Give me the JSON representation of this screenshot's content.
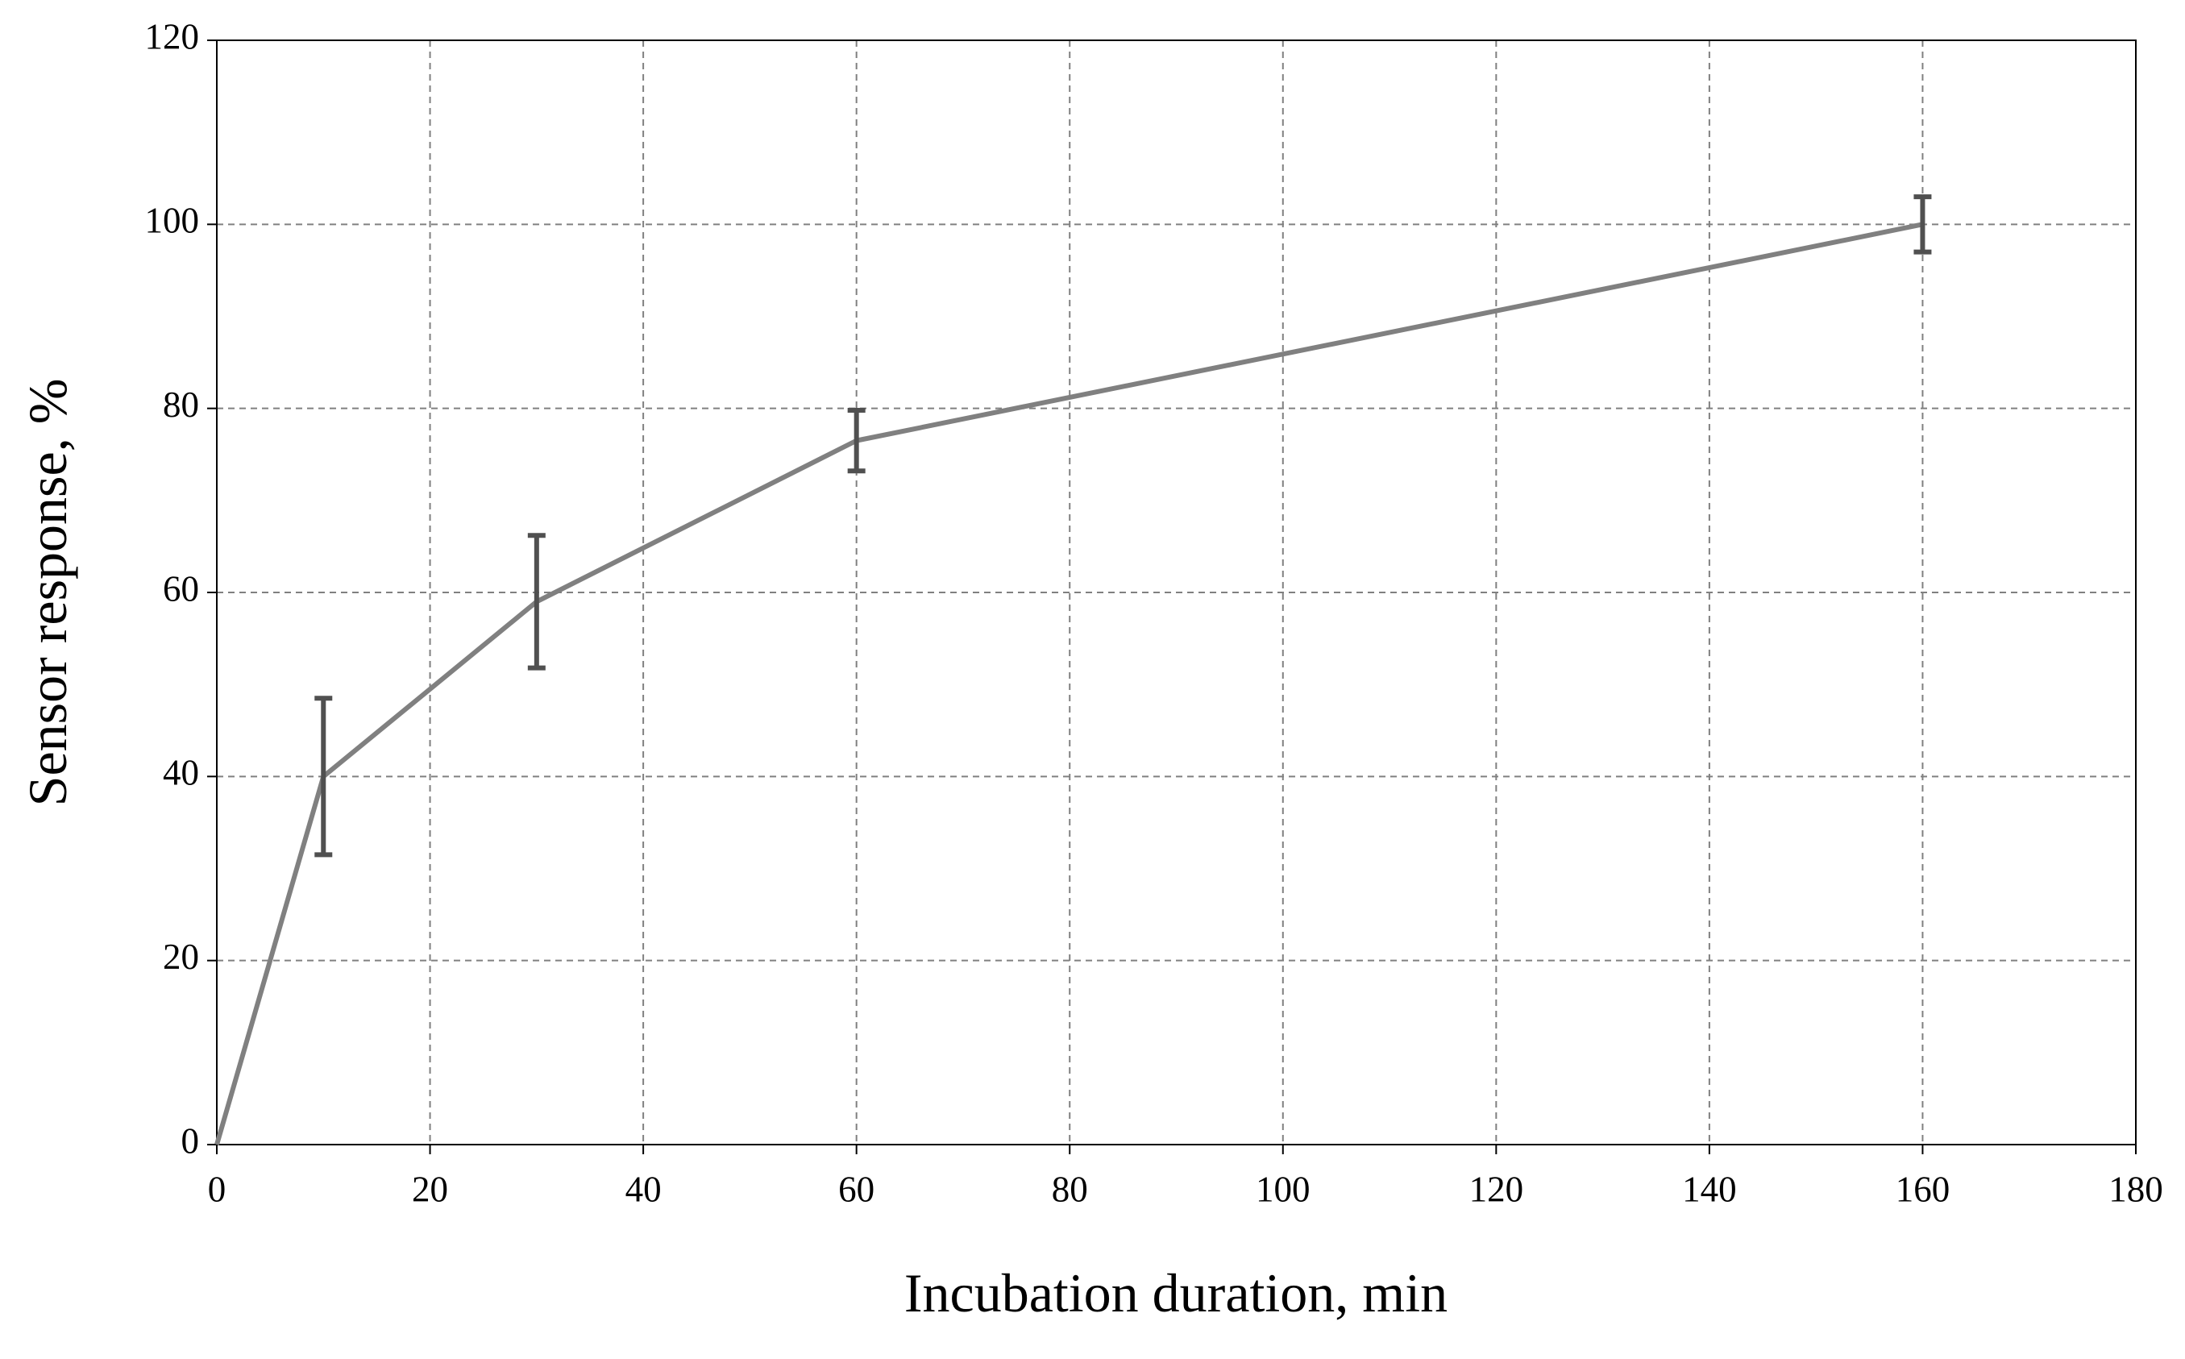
{
  "chart_data": {
    "type": "line",
    "x_label": "Incubation duration, min",
    "y_label": "Sensor response, %",
    "x": [
      0,
      10,
      30,
      60,
      160
    ],
    "series": [
      {
        "color": "#808080",
        "errorbar_color": "#505050",
        "values": [
          0,
          40,
          59,
          76.5,
          100
        ],
        "errors": [
          null,
          8.5,
          7.2,
          3.3,
          3
        ]
      }
    ],
    "xlim": [
      0,
      180
    ],
    "xticks": [
      0,
      20,
      40,
      60,
      80,
      100,
      120,
      140,
      160,
      180
    ],
    "ylim": [
      0,
      120
    ],
    "yticks": [
      0,
      20,
      40,
      60,
      80,
      100,
      120
    ],
    "grid": true
  }
}
